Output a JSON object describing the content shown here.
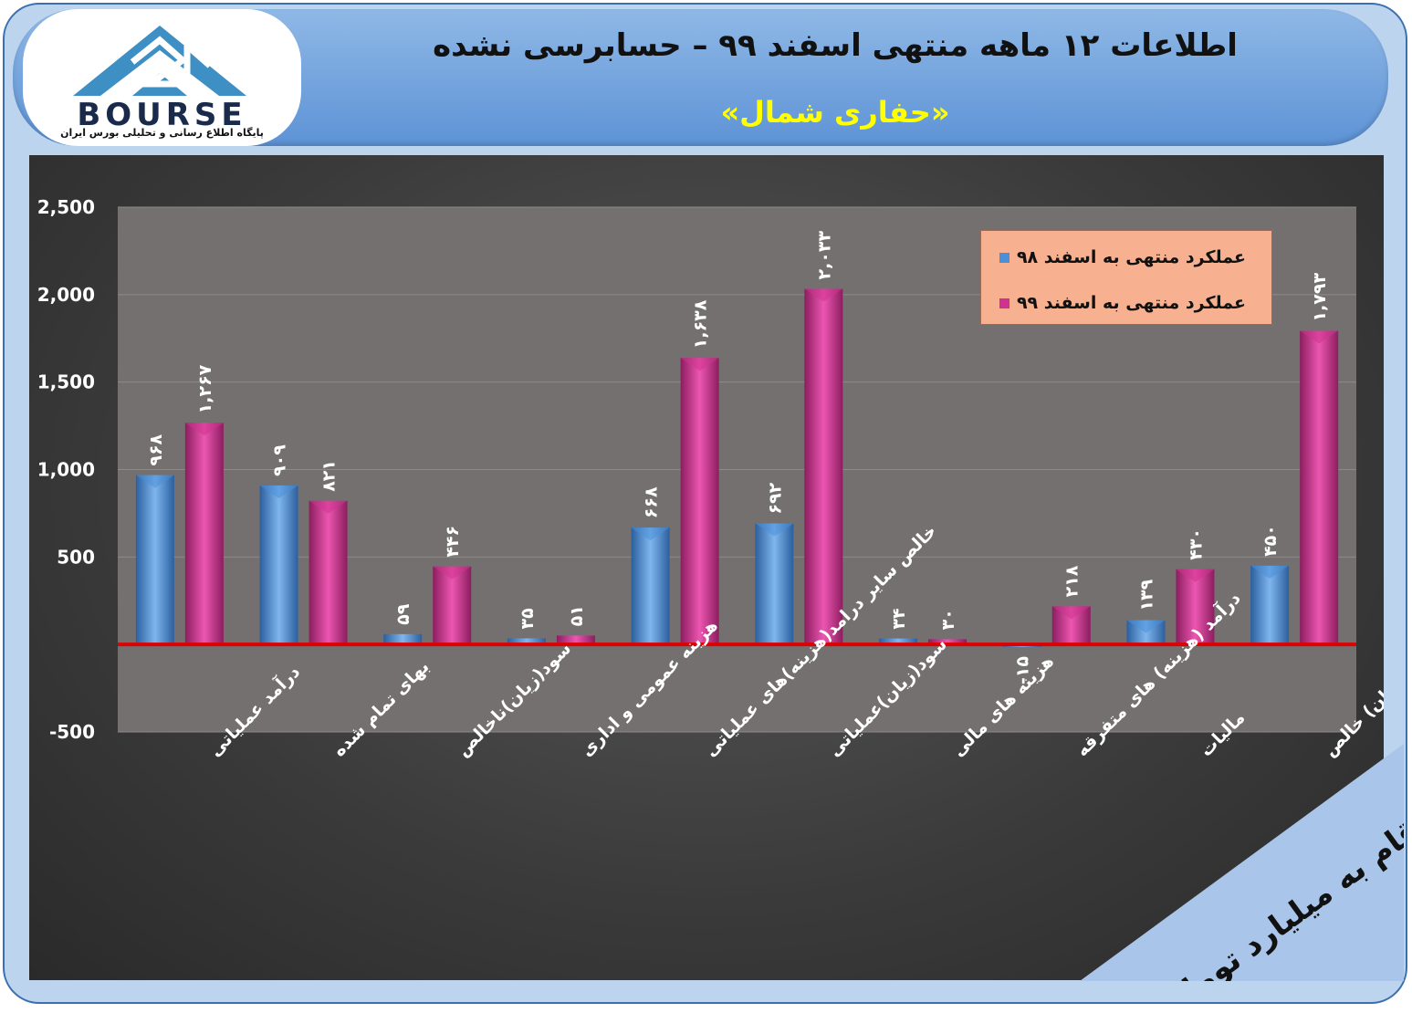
{
  "header": {
    "title": "اطلاعات ۱۲ ماهه منتهی اسفند ۹۹ – حسابرسی نشده",
    "subtitle": "«حفاری شمال»"
  },
  "logo": {
    "word": "BOURSE",
    "tagline": "پایگاه اطلاع رسانی و تحلیلی بورس ایران"
  },
  "units_note": "ارقام به میلیارد تومان",
  "colors": {
    "series1": "#4a8fd8",
    "series2": "#d0338f",
    "zero_line": "#e00000"
  },
  "chart_data": {
    "type": "bar",
    "categories": [
      "درآمد عملیاتی",
      "بهای تمام شده",
      "سود(زیان)ناخالص",
      "هزینه عمومی و اداری",
      "خالص سایر درامد(هزینه)های عملیاتی",
      "سود(زیان)عملیاتی",
      "هزینه های مالی",
      "درآمد (هزینه) های متفرقه",
      "مالیات",
      "سود(زیان) خالص"
    ],
    "series": [
      {
        "name": "عملکرد منتهی به اسفند ۹۸",
        "values": [
          968,
          909,
          59,
          35,
          668,
          692,
          34,
          -15,
          139,
          450
        ],
        "labels": [
          "۹۶۸",
          "۹۰۹",
          "۵۹",
          "۳۵",
          "۶۶۸",
          "۶۹۲",
          "۳۴",
          "-۱۵",
          "۱۳۹",
          "۴۵۰"
        ]
      },
      {
        "name": "عملکرد منتهی به اسفند ۹۹",
        "values": [
          1267,
          821,
          446,
          51,
          1638,
          2033,
          30,
          218,
          430,
          1793
        ],
        "labels": [
          "۱,۲۶۷",
          "۸۲۱",
          "۴۴۶",
          "۵۱",
          "۱,۶۳۸",
          "۲,۰۳۳",
          "۳۰",
          "۲۱۸",
          "۴۳۰",
          "۱,۷۹۳"
        ]
      }
    ],
    "yticks": [
      2500,
      2000,
      1500,
      1000,
      500,
      0,
      -500
    ],
    "ytick_labels": [
      "2,500",
      "2,000",
      "1,500",
      "1,000",
      "500",
      "",
      "-500"
    ],
    "ylim": [
      -500,
      2500
    ],
    "grid": true,
    "legend_position": "top-right"
  }
}
